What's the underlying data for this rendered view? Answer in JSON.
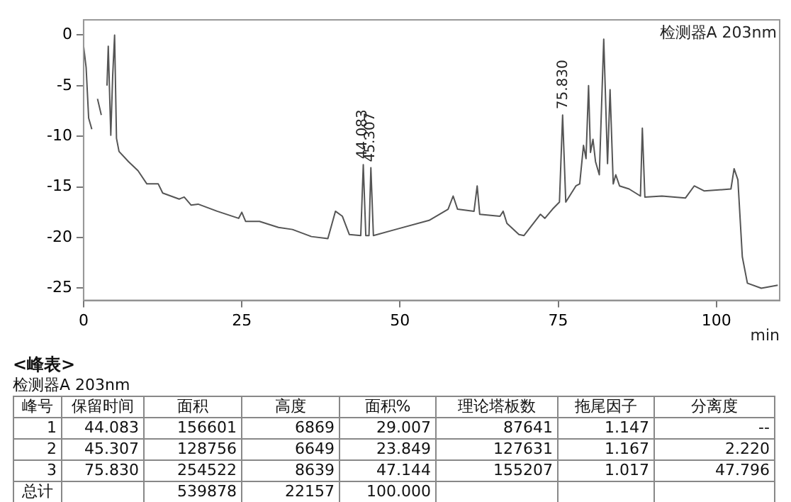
{
  "chart_data": {
    "type": "line",
    "xlabel": "min",
    "xlim": [
      0,
      110
    ],
    "ylim": [
      -26.2,
      1.5
    ],
    "xticks": [
      0,
      25,
      50,
      75,
      100
    ],
    "yticks": [
      -25,
      -20,
      -15,
      -10,
      -5,
      0
    ],
    "series": [
      {
        "color": "#555555",
        "x": [
          0,
          0.4,
          0.8,
          1.3,
          1.5,
          1.8,
          2.2,
          2.8,
          3.1,
          3.4,
          3.7,
          3.9,
          4.3,
          4.6,
          4.9,
          5.2,
          5.6,
          7.1,
          8.6,
          10.0,
          11.8,
          12.5,
          15.1,
          15.9,
          17.0,
          18.1,
          21.1,
          24.5,
          25.0,
          25.6,
          27.8,
          30.8,
          33.0,
          36.0,
          38.6,
          39.8,
          40.9,
          42.0,
          43.8,
          44.2,
          44.6,
          45.1,
          45.4,
          45.8,
          49.3,
          54.6,
          57.6,
          58.4,
          59.1,
          61.7,
          62.2,
          62.6,
          65.8,
          66.3,
          66.9,
          68.8,
          69.6,
          72.2,
          72.9,
          74.1,
          75.2,
          75.7,
          76.2,
          77.8,
          78.4,
          79.0,
          79.4,
          79.8,
          80.1,
          80.5,
          80.9,
          81.5,
          82.2,
          82.8,
          83.2,
          83.7,
          84.1,
          84.7,
          86.2,
          88.0,
          88.3,
          88.7,
          91.4,
          95.1,
          96.5,
          98.1,
          102.3,
          102.8,
          103.4,
          104.1,
          104.9,
          107.1,
          109.7
        ],
        "values": [
          -1.1,
          -3.2,
          -8.2,
          -9.3,
          null,
          null,
          -6.3,
          -7.9,
          null,
          null,
          -5.0,
          -1.1,
          -9.9,
          -4.0,
          0,
          -10.2,
          -11.5,
          -12.5,
          -13.4,
          -14.7,
          -14.7,
          -15.6,
          -16.2,
          -16.0,
          -16.8,
          -16.7,
          -17.4,
          -18.1,
          -17.5,
          -18.4,
          -18.4,
          -19.0,
          -19.2,
          -19.9,
          -20.1,
          -17.4,
          -17.9,
          -19.7,
          -19.8,
          -12.8,
          -19.8,
          -19.8,
          -13.1,
          -19.8,
          -19.2,
          -18.3,
          -17.2,
          -15.9,
          -17.2,
          -17.4,
          -14.9,
          -17.7,
          -17.9,
          -17.4,
          -18.6,
          -19.7,
          -19.8,
          -17.7,
          -18.1,
          -17.2,
          -16.5,
          -7.9,
          -16.5,
          -14.9,
          -14.7,
          -10.9,
          -12.2,
          -5.0,
          -11.6,
          -10.3,
          -12.5,
          -13.8,
          -0.4,
          -12.7,
          -5.4,
          -14.7,
          -13.8,
          -14.9,
          -15.2,
          -15.9,
          -9.2,
          -16.0,
          -15.9,
          -16.1,
          -14.9,
          -15.4,
          -15.2,
          -13.2,
          -14.3,
          -21.9,
          -24.5,
          -25.0,
          -24.7
        ]
      }
    ],
    "annotations": [
      {
        "text": "44.083",
        "x": 44.083,
        "y": -12.8
      },
      {
        "text": "45.307",
        "x": 45.307,
        "y": -13.1
      },
      {
        "text": "75.830",
        "x": 75.83,
        "y": -7.9
      },
      "检测器A 203nm",
      "<峰表>",
      "检测器A 203nm",
      "峰号",
      "保留时间",
      "面积",
      "高度",
      "面积%",
      "理论塔板数",
      "拖尾因子",
      "分离度",
      "1",
      "44.083",
      "156601",
      "6869",
      "29.007",
      "87641",
      "1.147",
      "--",
      "2",
      "45.307",
      "128756",
      "6649",
      "23.849",
      "127631",
      "1.167",
      "2.220",
      "3",
      "75.830",
      "254522",
      "8639",
      "47.144",
      "155207",
      "1.017",
      "47.796",
      "总计",
      null,
      "539878",
      "22157",
      "100.000",
      null,
      null,
      null
    ]
  }
}
